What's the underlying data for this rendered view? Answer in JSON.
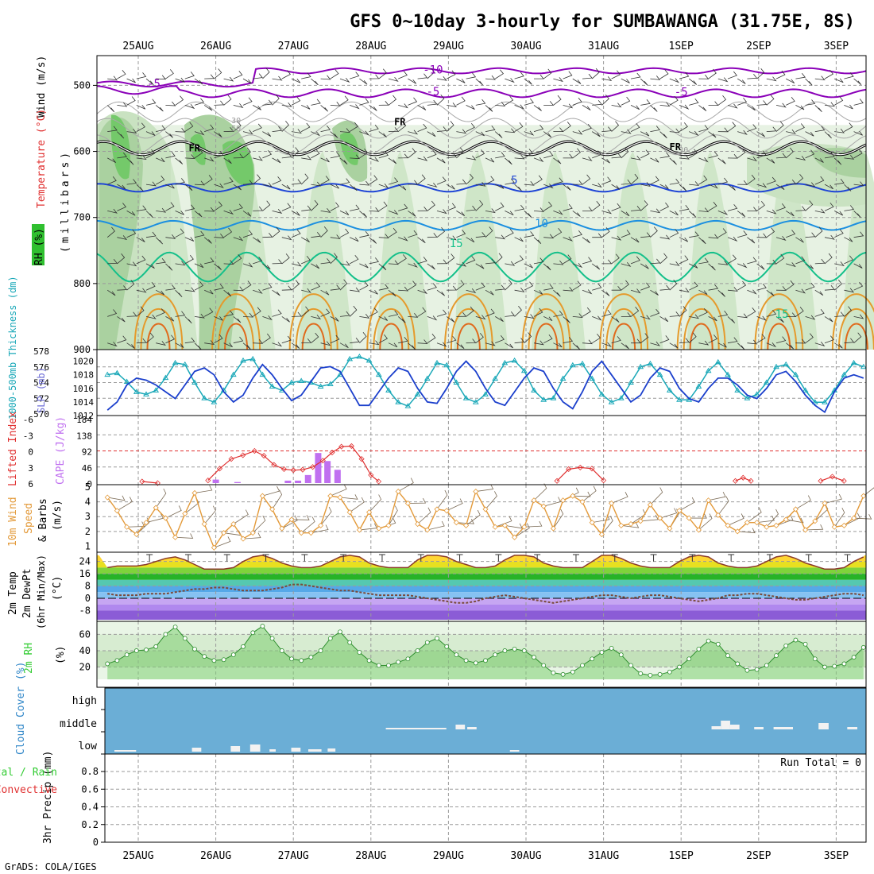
{
  "chart_data": {
    "title": "GFS 0~10day 3-hourly for SUMBAWANGA (31.75E, 8S)",
    "footer": "GrADS: COLA/IGES",
    "colors": {
      "grid": "#9a9a9a",
      "wind_barb": "#333333",
      "rh_light": "#e7f2e3",
      "rh_mid": "#c9e2c1",
      "rh_dark": "#aad1a0",
      "rh_green": "#74c96a",
      "temp_purple": "#8a00b8",
      "temp_blue": "#1f45d6",
      "temp_lblue": "#1b8fe0",
      "temp_green": "#14c08a",
      "temp_orange": "#e59a2c",
      "freezing": "#000000",
      "thickness": "#1aa8b8",
      "slp": "#1b3fcc",
      "lifted": "#e03030",
      "cape": "#c070f0",
      "wind10": "#e39a3a",
      "rh2m": "#33cc33",
      "cloud_bg": "#6baed6",
      "cloud_bar": "#f2f2f2"
    },
    "dates": [
      "25AUG",
      "26AUG",
      "27AUG",
      "28AUG",
      "29AUG",
      "30AUG",
      "31AUG",
      "1SEP",
      "2SEP",
      "3SEP"
    ],
    "panels": {
      "profile": {
        "type": "contour",
        "ylabel_parts": [
          "Wind (m/s)",
          "Temperature (°C)",
          "RH (%)",
          "(millibars)"
        ],
        "yticks": [
          500,
          600,
          700,
          800,
          900
        ],
        "ylim": [
          455,
          900
        ],
        "isotherm_labels": [
          {
            "text": "-10",
            "day": 3.8,
            "p": 482
          },
          {
            "text": "-5",
            "day": 0.2,
            "p": 503
          },
          {
            "text": "-5",
            "day": 3.8,
            "p": 515
          },
          {
            "text": "-5",
            "day": 7.0,
            "p": 516
          },
          {
            "text": "5",
            "day": 4.85,
            "p": 649
          },
          {
            "text": "10",
            "day": 5.2,
            "p": 715
          },
          {
            "text": "15",
            "day": 4.1,
            "p": 745
          },
          {
            "text": "15",
            "day": 8.3,
            "p": 852
          }
        ],
        "freezing_labels": [
          {
            "text": "FR",
            "day": 0.65,
            "p": 600
          },
          {
            "text": "FR",
            "day": 3.3,
            "p": 560
          },
          {
            "text": "FR",
            "day": 6.85,
            "p": 598
          }
        ],
        "rh_labels": [
          {
            "text": "30",
            "day": 1.2,
            "p": 557
          },
          {
            "text": "50",
            "day": 1.2,
            "p": 569
          },
          {
            "text": "30",
            "day": 6.97,
            "p": 602
          }
        ]
      },
      "thickness_slp": {
        "type": "line",
        "ylabel_left": "1000-500mb Thickness (dm)",
        "ylabel_right": "SLP (mb)",
        "ticks_thickness": [
          570,
          572,
          574,
          576,
          578
        ],
        "ticks_slp": [
          1012,
          1014,
          1016,
          1018,
          1020
        ],
        "thickness": [
          575.0,
          575.2,
          574.1,
          572.8,
          572.5,
          573.0,
          574.6,
          576.5,
          576.3,
          574.0,
          572.0,
          571.5,
          573.0,
          575.0,
          576.8,
          577.0,
          575.0,
          573.5,
          573.0,
          574.0,
          574.2,
          574.0,
          573.5,
          573.8,
          575.0,
          577.0,
          577.3,
          576.8,
          575.0,
          573.0,
          571.5,
          571.0,
          572.5,
          574.5,
          576.5,
          576.2,
          574.0,
          572.0,
          571.5,
          572.5,
          574.5,
          576.5,
          576.8,
          575.5,
          573.0,
          571.8,
          572.0,
          574.5,
          576.2,
          576.4,
          574.5,
          572.5,
          571.5,
          572.0,
          574.0,
          576.0,
          576.4,
          575.0,
          573.0,
          571.8,
          571.8,
          573.5,
          575.5,
          576.6,
          575.0,
          573.0,
          572.0,
          572.5,
          574.0,
          576.0,
          576.3,
          575.0,
          573.0,
          571.5,
          571.5,
          573.0,
          575.0,
          576.5,
          576.0,
          574.0,
          572.0,
          570.8,
          572.0,
          574.0
        ],
        "slp": [
          1012.8,
          1014.0,
          1016.5,
          1017.5,
          1017.2,
          1016.5,
          1015.5,
          1014.5,
          1016.5,
          1018.5,
          1019.0,
          1018.0,
          1015.5,
          1014.0,
          1015.0,
          1017.5,
          1019.5,
          1018.0,
          1016.0,
          1014.2,
          1015.0,
          1017.0,
          1019.0,
          1019.2,
          1018.5,
          1016.0,
          1013.5,
          1013.5,
          1015.5,
          1017.5,
          1019.0,
          1018.5,
          1016.0,
          1014.0,
          1013.8,
          1016.0,
          1018.5,
          1020.0,
          1018.5,
          1016.0,
          1014.0,
          1013.5,
          1015.5,
          1017.5,
          1019.0,
          1018.5,
          1016.0,
          1014.0,
          1013.0,
          1015.5,
          1018.5,
          1020.0,
          1018.0,
          1016.0,
          1014.0,
          1015.0,
          1017.5,
          1019.0,
          1018.5,
          1016.0,
          1014.5,
          1014.0,
          1016.0,
          1017.5,
          1017.5,
          1016.5,
          1015.0,
          1014.5,
          1016.0,
          1018.0,
          1018.5,
          1017.0,
          1015.0,
          1013.5,
          1012.5,
          1015.5,
          1017.5,
          1018.0,
          1017.5,
          1015.0,
          1013.0,
          1015.5,
          1017.5,
          1018.5
        ]
      },
      "cape_li": {
        "type": "bar+line",
        "ylabel_left": "Lifted Index",
        "ylabel_right": "CAPE (J/kg)",
        "ticks_li": [
          "-6",
          "-3",
          "0",
          "3",
          "6"
        ],
        "ticks_cape": [
          "184",
          "138",
          "92",
          "46",
          "0"
        ],
        "cape_bars": [
          {
            "day": 1.0,
            "v": 10
          },
          {
            "day": 1.28,
            "v": 3
          },
          {
            "day": 1.93,
            "v": 7
          },
          {
            "day": 2.06,
            "v": 7
          },
          {
            "day": 2.19,
            "v": 23
          },
          {
            "day": 2.32,
            "v": 86
          },
          {
            "day": 2.44,
            "v": 63
          },
          {
            "day": 2.57,
            "v": 38
          }
        ],
        "li_segments": [
          [
            [
              0.05,
              5.7
            ],
            [
              0.25,
              6.0
            ]
          ],
          [
            [
              0.9,
              5.5
            ],
            [
              1.05,
              3.3
            ],
            [
              1.2,
              1.5
            ],
            [
              1.35,
              0.8
            ],
            [
              1.5,
              0.0
            ],
            [
              1.62,
              0.9
            ],
            [
              1.75,
              2.6
            ],
            [
              1.88,
              3.4
            ],
            [
              2.0,
              3.6
            ],
            [
              2.12,
              3.5
            ],
            [
              2.25,
              3.0
            ],
            [
              2.38,
              1.8
            ],
            [
              2.5,
              0.3
            ],
            [
              2.62,
              -0.8
            ],
            [
              2.75,
              -0.9
            ],
            [
              2.88,
              1.5
            ],
            [
              3.0,
              4.5
            ],
            [
              3.1,
              5.7
            ]
          ],
          [
            [
              5.4,
              5.6
            ],
            [
              5.55,
              3.4
            ],
            [
              5.7,
              3.1
            ],
            [
              5.85,
              3.3
            ],
            [
              6.0,
              5.5
            ]
          ],
          [
            [
              7.7,
              5.6
            ],
            [
              7.8,
              5.0
            ],
            [
              7.9,
              5.6
            ]
          ],
          [
            [
              8.8,
              5.6
            ],
            [
              8.95,
              4.8
            ],
            [
              9.1,
              5.6
            ]
          ],
          [
            [
              9.8,
              5.6
            ],
            [
              9.95,
              4.6
            ],
            [
              10.1,
              5.6
            ]
          ]
        ]
      },
      "wind10m": {
        "type": "line",
        "ylabel_parts": [
          "10m Wind",
          "Speed",
          "& Barbs",
          "(m/s)"
        ],
        "yticks": [
          1,
          2,
          3,
          4,
          5
        ],
        "speed": [
          4.3,
          3.4,
          2.3,
          1.8,
          2.6,
          3.6,
          2.9,
          1.6,
          3.2,
          4.6,
          2.5,
          0.9,
          1.9,
          2.5,
          1.5,
          1.9,
          4.4,
          3.5,
          2.2,
          2.8,
          1.9,
          1.9,
          2.4,
          4.4,
          4.3,
          3.3,
          2.1,
          3.3,
          2.2,
          2.4,
          4.7,
          3.9,
          2.5,
          2.1,
          3.5,
          3.4,
          2.6,
          2.4,
          4.7,
          3.5,
          2.3,
          2.4,
          1.6,
          2.3,
          4.1,
          3.7,
          2.2,
          4.1,
          4.4,
          4.0,
          2.6,
          1.8,
          3.9,
          2.4,
          2.5,
          2.7,
          3.8,
          2.9,
          2.2,
          3.4,
          2.9,
          2.1,
          4.1,
          3.1,
          2.4,
          2.0,
          2.6,
          2.6,
          2.3,
          2.4,
          2.8,
          3.5,
          2.1,
          2.7,
          3.9,
          2.3,
          2.4,
          2.9,
          4.4,
          3.2,
          2.0,
          2.7,
          3.0,
          3.2
        ]
      },
      "temp2m": {
        "type": "line",
        "ylabel_parts": [
          "2m Temp",
          "2m DewPt",
          "(6hr Min/Max)",
          "(°C)"
        ],
        "yticks": [
          -8,
          0,
          8,
          16,
          24
        ],
        "temp": [
          20,
          21,
          21,
          21,
          22,
          24,
          26,
          27,
          25,
          22,
          19,
          19,
          19,
          20,
          24,
          27,
          28,
          26,
          23,
          21,
          20,
          20,
          21,
          24,
          27,
          28,
          27,
          23,
          21,
          20,
          20,
          20,
          25,
          28,
          28,
          27,
          24,
          22,
          20,
          20,
          21,
          25,
          28,
          28,
          27,
          23,
          21,
          20,
          20,
          20,
          24,
          28,
          28,
          26,
          23,
          21,
          20,
          20,
          20,
          24,
          27,
          28,
          27,
          23,
          21,
          20,
          20,
          21,
          24,
          27,
          28,
          26,
          23,
          21,
          19,
          19,
          20,
          24,
          27,
          28,
          27,
          23,
          21,
          20
        ],
        "dewpt": [
          3,
          2,
          2,
          2,
          3,
          3,
          3,
          4,
          5,
          6,
          6,
          7,
          7,
          6,
          5,
          5,
          5,
          6,
          7,
          9,
          9,
          8,
          7,
          6,
          5,
          5,
          4,
          3,
          2,
          2,
          2,
          2,
          1,
          0,
          -1,
          -2,
          -3,
          -3,
          -2,
          0,
          1,
          2,
          1,
          0,
          -1,
          -2,
          -3,
          -2,
          -1,
          0,
          1,
          2,
          2,
          1,
          0,
          1,
          2,
          2,
          1,
          0,
          -1,
          -2,
          -1,
          0,
          2,
          2,
          3,
          3,
          2,
          1,
          0,
          -1,
          -1,
          0,
          1,
          2,
          3,
          3,
          2,
          1,
          1,
          2,
          3,
          4
        ]
      },
      "rh2m": {
        "type": "area",
        "ylabel_parts": [
          "2m RH",
          "(%)"
        ],
        "yticks": [
          20,
          40,
          60
        ],
        "rh": [
          24,
          28,
          35,
          40,
          41,
          45,
          60,
          69,
          55,
          42,
          33,
          28,
          29,
          35,
          45,
          62,
          70,
          55,
          40,
          30,
          28,
          32,
          40,
          55,
          63,
          50,
          38,
          28,
          22,
          22,
          26,
          30,
          40,
          50,
          55,
          45,
          35,
          28,
          25,
          28,
          35,
          40,
          42,
          40,
          32,
          22,
          13,
          11,
          14,
          22,
          30,
          38,
          43,
          35,
          22,
          12,
          10,
          11,
          14,
          20,
          30,
          42,
          52,
          48,
          34,
          24,
          16,
          17,
          22,
          34,
          46,
          53,
          48,
          30,
          20,
          21,
          24,
          32,
          44,
          54,
          49,
          33,
          24,
          23
        ]
      },
      "cloud": {
        "type": "bar",
        "ylabel": "Cloud Cover (%)",
        "levels": [
          "high",
          "middle",
          "low"
        ],
        "blocks": [
          {
            "level": "low",
            "day": 0.0,
            "w": 0.28,
            "h": 2
          },
          {
            "level": "low",
            "day": 1.0,
            "w": 0.12,
            "h": 5
          },
          {
            "level": "low",
            "day": 1.5,
            "w": 0.12,
            "h": 7
          },
          {
            "level": "low",
            "day": 1.75,
            "w": 0.13,
            "h": 9
          },
          {
            "level": "low",
            "day": 2.0,
            "w": 0.08,
            "h": 3
          },
          {
            "level": "low",
            "day": 2.28,
            "w": 0.12,
            "h": 5
          },
          {
            "level": "low",
            "day": 2.55,
            "w": 0.12,
            "h": 3
          },
          {
            "level": "low",
            "day": 5.1,
            "w": 0.12,
            "h": 2
          },
          {
            "level": "low",
            "day": 2.75,
            "w": 0.1,
            "h": 4
          },
          {
            "level": "middle",
            "day": 3.5,
            "w": 0.78,
            "h": 2
          },
          {
            "level": "middle",
            "day": 4.4,
            "w": 0.12,
            "h": 6
          },
          {
            "level": "middle",
            "day": 4.55,
            "w": 0.12,
            "h": 3
          },
          {
            "level": "middle",
            "day": 7.7,
            "w": 0.12,
            "h": 4
          },
          {
            "level": "middle",
            "day": 7.82,
            "w": 0.12,
            "h": 11
          },
          {
            "level": "middle",
            "day": 7.94,
            "w": 0.12,
            "h": 6
          },
          {
            "level": "middle",
            "day": 8.25,
            "w": 0.12,
            "h": 3
          },
          {
            "level": "middle",
            "day": 8.5,
            "w": 0.25,
            "h": 3
          },
          {
            "level": "middle",
            "day": 9.08,
            "w": 0.13,
            "h": 8
          },
          {
            "level": "middle",
            "day": 9.45,
            "w": 0.13,
            "h": 3
          },
          {
            "level": "middle",
            "day": 10.5,
            "w": 0.12,
            "h": 3
          },
          {
            "level": "middle",
            "day": 10.62,
            "w": 0.12,
            "h": 5
          },
          {
            "level": "low",
            "day": 2.5,
            "w": 0.12,
            "h": 3
          }
        ]
      },
      "precip": {
        "type": "bar",
        "ylabel": "3hr Precip (mm)",
        "legend_left": "Total / Rain",
        "legend_right": "Convective",
        "yticks": [
          "0",
          "0.2",
          "0.4",
          "0.6",
          "0.8"
        ],
        "run_total": "Run Total = 0"
      }
    }
  }
}
